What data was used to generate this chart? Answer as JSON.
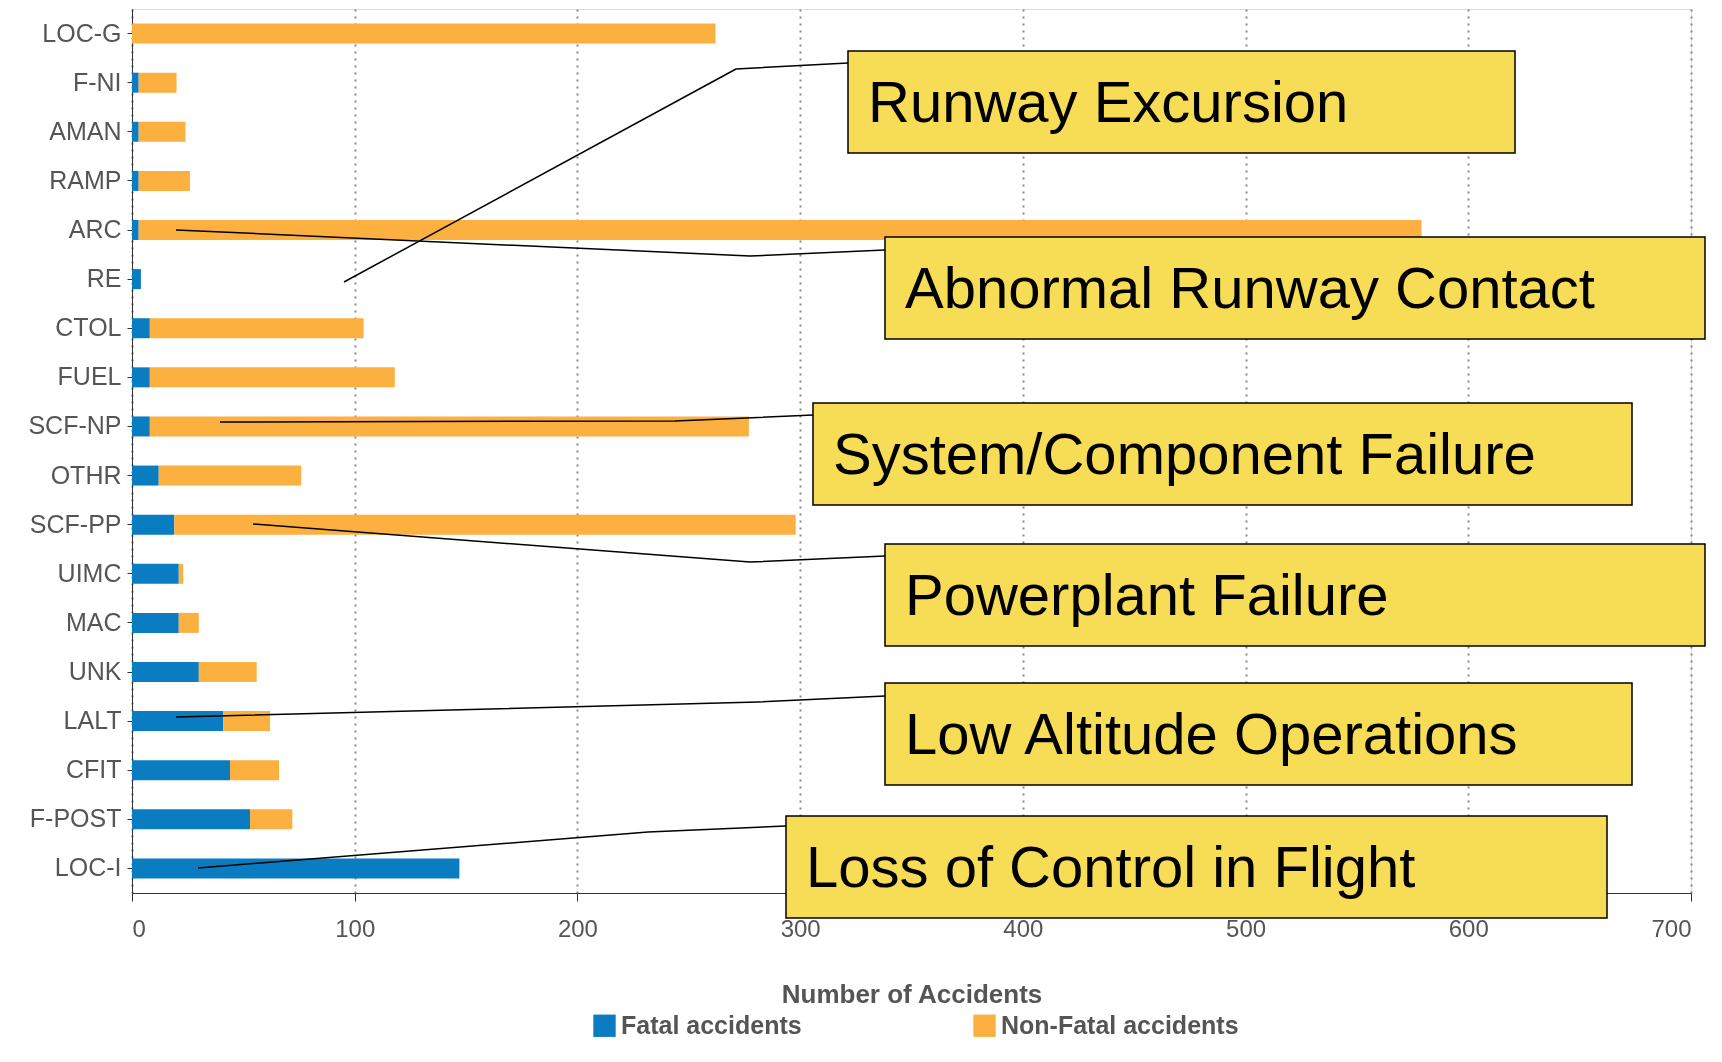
{
  "chart_data": {
    "type": "bar",
    "orientation": "horizontal",
    "stacked": true,
    "categories": [
      "LOC-G",
      "F-NI",
      "AMAN",
      "RAMP",
      "ARC",
      "RE",
      "CTOL",
      "FUEL",
      "SCF-NP",
      "OTHR",
      "SCF-PP",
      "UIMC",
      "MAC",
      "UNK",
      "LALT",
      "CFIT",
      "F-POST",
      "LOC-I"
    ],
    "series": [
      {
        "name": "Fatal accidents",
        "color": "#0a7cc1",
        "values": [
          0,
          3,
          3,
          3,
          3,
          4,
          8,
          8,
          8,
          12,
          19,
          21,
          21,
          30,
          41,
          44,
          53,
          147
        ]
      },
      {
        "name": "Non-Fatal accidents",
        "color": "#fbb040",
        "values": [
          262,
          17,
          21,
          23,
          576,
          null,
          96,
          110,
          269,
          64,
          279,
          2,
          9,
          26,
          21,
          22,
          19,
          null
        ]
      }
    ],
    "xlim": [
      0,
      700
    ],
    "xticks": [
      0,
      100,
      200,
      300,
      400,
      500,
      600,
      700
    ],
    "xlabel": "Number of Accidents",
    "grid": "x",
    "legend": "bottom",
    "annotations": [
      "Runway Excursion",
      "Abnormal Runway Contact",
      "System/Component Failure",
      "Powerplant Failure",
      "Low Altitude Operations",
      "Loss of Control in Flight"
    ]
  }
}
